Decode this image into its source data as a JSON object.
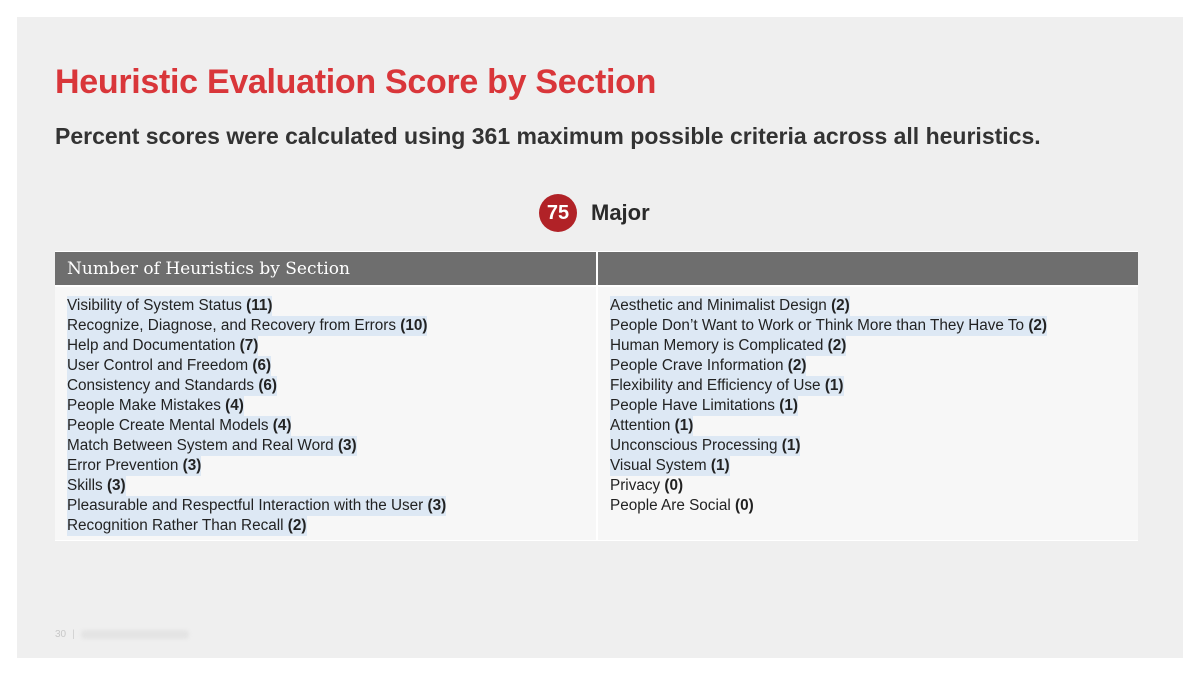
{
  "slide": {
    "title": "Heuristic Evaluation Score by Section",
    "subtitle": "Percent scores were calculated using 361 maximum possible criteria across all heuristics.",
    "score": {
      "value": "75",
      "label": "Major",
      "badge_color": "#b12227"
    },
    "accent_color": "#d9363a"
  },
  "table": {
    "header": {
      "left": "Number of Heuristics by Section",
      "right": ""
    },
    "left_items": [
      {
        "name": "Visibility of System Status",
        "count": "(11)",
        "highlighted": true
      },
      {
        "name": "Recognize, Diagnose, and Recovery from Errors",
        "count": "(10)",
        "highlighted": true
      },
      {
        "name": "Help and Documentation",
        "count": "(7)",
        "highlighted": true
      },
      {
        "name": "User Control and Freedom",
        "count": "(6)",
        "highlighted": true
      },
      {
        "name": "Consistency and Standards",
        "count": "(6)",
        "highlighted": true
      },
      {
        "name": "People Make Mistakes",
        "count": "(4)",
        "highlighted": true
      },
      {
        "name": "People Create Mental Models",
        "count": "(4)",
        "highlighted": true
      },
      {
        "name": "Match Between System and Real Word",
        "count": "(3)",
        "highlighted": true
      },
      {
        "name": "Error Prevention",
        "count": "(3)",
        "highlighted": true
      },
      {
        "name": "Skills",
        "count": "(3)",
        "highlighted": true
      },
      {
        "name": "Pleasurable and Respectful Interaction with the User",
        "count": "(3)",
        "highlighted": true
      },
      {
        "name": "Recognition Rather Than Recall",
        "count": "(2)",
        "highlighted": true
      }
    ],
    "right_items": [
      {
        "name": "Aesthetic and Minimalist Design",
        "count": "(2)",
        "highlighted": true
      },
      {
        "name": "People Don’t Want to Work or Think More than They Have To",
        "count": "(2)",
        "highlighted": true
      },
      {
        "name": "Human Memory is Complicated",
        "count": "(2)",
        "highlighted": true
      },
      {
        "name": "People Crave Information",
        "count": "(2)",
        "highlighted": true
      },
      {
        "name": "Flexibility and Efficiency of Use",
        "count": "(1)",
        "highlighted": true
      },
      {
        "name": "People Have Limitations",
        "count": "(1)",
        "highlighted": true
      },
      {
        "name": "Attention",
        "count": "(1)",
        "highlighted": true
      },
      {
        "name": "Unconscious Processing",
        "count": "(1)",
        "highlighted": true
      },
      {
        "name": "Visual System",
        "count": "(1)",
        "highlighted": true
      },
      {
        "name": "Privacy",
        "count": "(0)",
        "highlighted": false
      },
      {
        "name": "People Are Social",
        "count": "(0)",
        "highlighted": false
      }
    ]
  },
  "footer": {
    "page_number": "30",
    "separator": "|"
  }
}
